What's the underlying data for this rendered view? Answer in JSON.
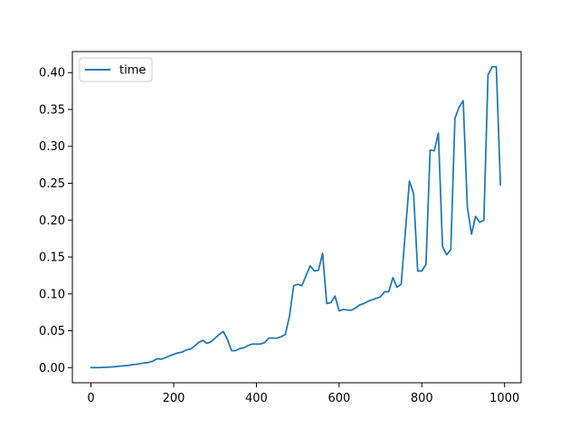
{
  "chart_data": {
    "type": "line",
    "title": "",
    "xlabel": "",
    "ylabel": "",
    "xlim": [
      -45,
      1040
    ],
    "ylim": [
      -0.0205,
      0.4285
    ],
    "x_ticks": [
      0,
      200,
      400,
      600,
      800,
      1000
    ],
    "y_ticks": [
      0.0,
      0.05,
      0.1,
      0.15,
      0.2,
      0.25,
      0.3,
      0.35,
      0.4
    ],
    "x_tick_labels": [
      "0",
      "200",
      "400",
      "600",
      "800",
      "1000"
    ],
    "y_tick_labels": [
      "0.00",
      "0.05",
      "0.10",
      "0.15",
      "0.20",
      "0.25",
      "0.30",
      "0.35",
      "0.40"
    ],
    "grid": false,
    "legend_position": "top-left",
    "series": [
      {
        "name": "time",
        "color": "#1f77b4",
        "x": [
          0,
          10,
          20,
          30,
          40,
          50,
          60,
          70,
          80,
          90,
          100,
          110,
          120,
          130,
          140,
          150,
          160,
          170,
          180,
          190,
          200,
          210,
          220,
          230,
          240,
          250,
          260,
          270,
          280,
          290,
          300,
          310,
          320,
          330,
          340,
          350,
          360,
          370,
          380,
          390,
          400,
          410,
          420,
          430,
          440,
          450,
          460,
          470,
          480,
          490,
          500,
          510,
          520,
          530,
          540,
          550,
          560,
          570,
          580,
          590,
          600,
          610,
          620,
          630,
          640,
          650,
          660,
          670,
          680,
          690,
          700,
          710,
          720,
          730,
          740,
          750,
          760,
          770,
          780,
          790,
          800,
          810,
          820,
          830,
          840,
          850,
          860,
          870,
          880,
          890,
          900,
          910,
          920,
          930,
          940,
          950,
          960,
          970,
          980,
          990
        ],
        "y": [
          0.0,
          0.0,
          0.0,
          0.0005,
          0.0005,
          0.001,
          0.0015,
          0.002,
          0.0025,
          0.003,
          0.004,
          0.0045,
          0.0055,
          0.0065,
          0.007,
          0.009,
          0.012,
          0.0115,
          0.0135,
          0.016,
          0.018,
          0.02,
          0.021,
          0.024,
          0.025,
          0.029,
          0.034,
          0.037,
          0.033,
          0.035,
          0.04,
          0.045,
          0.049,
          0.038,
          0.023,
          0.023,
          0.026,
          0.027,
          0.03,
          0.032,
          0.032,
          0.032,
          0.034,
          0.04,
          0.04,
          0.04,
          0.042,
          0.045,
          0.07,
          0.111,
          0.113,
          0.111,
          0.125,
          0.138,
          0.131,
          0.132,
          0.155,
          0.087,
          0.088,
          0.097,
          0.077,
          0.079,
          0.078,
          0.078,
          0.081,
          0.085,
          0.087,
          0.09,
          0.092,
          0.094,
          0.096,
          0.103,
          0.103,
          0.122,
          0.109,
          0.113,
          0.183,
          0.253,
          0.236,
          0.131,
          0.131,
          0.14,
          0.295,
          0.294,
          0.318,
          0.164,
          0.153,
          0.16,
          0.338,
          0.353,
          0.362,
          0.218,
          0.181,
          0.205,
          0.197,
          0.2,
          0.397,
          0.408,
          0.408,
          0.248
        ]
      }
    ]
  }
}
